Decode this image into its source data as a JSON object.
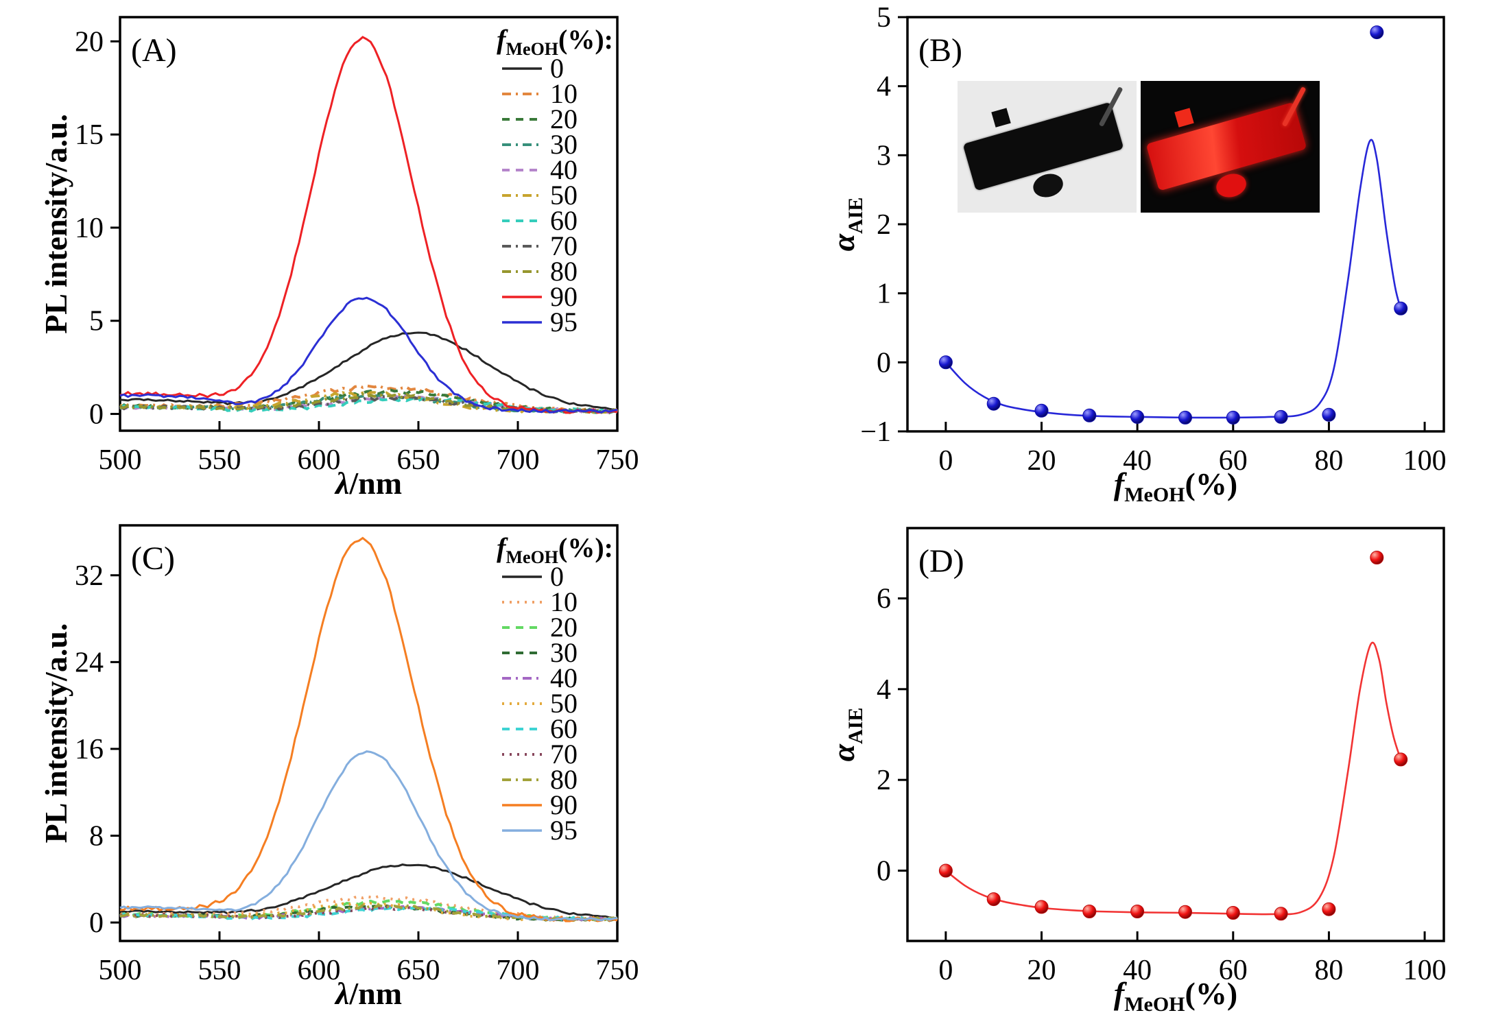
{
  "figure": {
    "background": "#ffffff",
    "description_colors": {
      "panel_a_main_red": "#ee2125",
      "panel_a_main_blue": "#2b2fd4",
      "panel_c_main_orange": "#f57e22",
      "panel_c_main_lightblue": "#84aede",
      "scatter_blue": "#1717cf",
      "scatter_red": "#f01212"
    }
  },
  "inset": {
    "bright_bg": "#eaeaea",
    "bright_crystal": "#0c0c0c",
    "dark_bg": "#070707",
    "fluor_crystal": "#e51212"
  },
  "chart_data": [
    {
      "id": "A",
      "type": "line",
      "panel_label": "(A)",
      "xlabel": {
        "italic": "λ",
        "rest": "/nm"
      },
      "ylabel": {
        "text": "PL intensity/a.u."
      },
      "xlim": [
        500,
        750
      ],
      "xticks": [
        500,
        550,
        600,
        650,
        700,
        750
      ],
      "ylim": [
        -0.9,
        21.3
      ],
      "yticks": [
        0,
        5,
        10,
        15,
        20
      ],
      "grid": false,
      "floor": 0.15,
      "legend": {
        "position": "inside-top-right",
        "title": {
          "italic": "f",
          "sub": "MeOH",
          "rest": "(%):"
        }
      },
      "series": [
        {
          "label": "0",
          "color": "#262626",
          "style": "solid",
          "peak_nm": 648,
          "peak_intensity": 4.2,
          "width_nm": 52,
          "baseline": 0.6,
          "noise": 0.06
        },
        {
          "label": "10",
          "color": "#e2873f",
          "style": "dashdot",
          "peak_nm": 630,
          "peak_intensity": 1.3,
          "width_nm": 55,
          "baseline": 0.25,
          "noise": 0.1
        },
        {
          "label": "20",
          "color": "#3a7a3a",
          "style": "dash",
          "peak_nm": 638,
          "peak_intensity": 1.05,
          "width_nm": 50,
          "baseline": 0.25,
          "noise": 0.1
        },
        {
          "label": "30",
          "color": "#37907b",
          "style": "dashdot",
          "peak_nm": 628,
          "peak_intensity": 0.85,
          "width_nm": 48,
          "baseline": 0.2,
          "noise": 0.09
        },
        {
          "label": "40",
          "color": "#b585cb",
          "style": "dash",
          "peak_nm": 642,
          "peak_intensity": 0.75,
          "width_nm": 50,
          "baseline": 0.2,
          "noise": 0.09
        },
        {
          "label": "50",
          "color": "#c7a42e",
          "style": "dashdot",
          "peak_nm": 622,
          "peak_intensity": 0.95,
          "width_nm": 45,
          "baseline": 0.25,
          "noise": 0.1
        },
        {
          "label": "60",
          "color": "#35cdbb",
          "style": "dash",
          "peak_nm": 648,
          "peak_intensity": 0.65,
          "width_nm": 50,
          "baseline": 0.2,
          "noise": 0.09
        },
        {
          "label": "70",
          "color": "#5a5a5a",
          "style": "dashdot",
          "peak_nm": 636,
          "peak_intensity": 0.7,
          "width_nm": 48,
          "baseline": 0.2,
          "noise": 0.09
        },
        {
          "label": "80",
          "color": "#96962e",
          "style": "dashdot",
          "peak_nm": 632,
          "peak_intensity": 0.85,
          "width_nm": 46,
          "baseline": 0.25,
          "noise": 0.1
        },
        {
          "label": "90",
          "color": "#ee2125",
          "style": "solid",
          "peak_nm": 622,
          "peak_intensity": 20.0,
          "width_nm": 36,
          "baseline": 0.95,
          "noise": 0.1
        },
        {
          "label": "95",
          "color": "#2b2fd4",
          "style": "solid",
          "peak_nm": 623,
          "peak_intensity": 6.1,
          "width_nm": 33,
          "baseline": 0.85,
          "noise": 0.08
        }
      ]
    },
    {
      "id": "B",
      "type": "scatter",
      "panel_label": "(B)",
      "xlabel": {
        "italic": "f",
        "sub": "MeOH",
        "rest": "(%)"
      },
      "ylabel": {
        "italic": "α",
        "sub": "AIE"
      },
      "xlim": [
        -8,
        104
      ],
      "xticks": [
        0,
        20,
        40,
        60,
        80,
        100
      ],
      "ylim": [
        -1,
        5
      ],
      "yticks": [
        -1,
        0,
        1,
        2,
        3,
        4,
        5
      ],
      "grid": false,
      "marker_color": "#1717cf",
      "marker_light": "#9d9dff",
      "marker_dark": "#05055e",
      "marker_edge": "#0d0da8",
      "curve_color": "#2727d8",
      "points": {
        "x": [
          0,
          10,
          20,
          30,
          40,
          50,
          60,
          70,
          80,
          90,
          95
        ],
        "y": [
          0,
          -0.6,
          -0.7,
          -0.77,
          -0.79,
          -0.8,
          -0.8,
          -0.79,
          -0.76,
          4.78,
          0.78
        ]
      },
      "fit_curve": [
        [
          0,
          0
        ],
        [
          4,
          -0.3
        ],
        [
          8,
          -0.5
        ],
        [
          12,
          -0.62
        ],
        [
          16,
          -0.68
        ],
        [
          20,
          -0.72
        ],
        [
          26,
          -0.76
        ],
        [
          32,
          -0.78
        ],
        [
          40,
          -0.79
        ],
        [
          50,
          -0.8
        ],
        [
          60,
          -0.8
        ],
        [
          68,
          -0.79
        ],
        [
          74,
          -0.76
        ],
        [
          78,
          -0.6
        ],
        [
          81,
          -0.1
        ],
        [
          84,
          1.2
        ],
        [
          86.5,
          2.5
        ],
        [
          88.5,
          3.2
        ],
        [
          90,
          2.95
        ],
        [
          92,
          1.9
        ],
        [
          93.8,
          1.1
        ],
        [
          95,
          0.78
        ]
      ]
    },
    {
      "id": "C",
      "type": "line",
      "panel_label": "(C)",
      "xlabel": {
        "italic": "λ",
        "rest": "/nm"
      },
      "ylabel": {
        "text": "PL intensity/a.u."
      },
      "xlim": [
        500,
        750
      ],
      "xticks": [
        500,
        550,
        600,
        650,
        700,
        750
      ],
      "ylim": [
        -1.7,
        36.6
      ],
      "yticks": [
        0,
        8,
        16,
        24,
        32
      ],
      "grid": false,
      "floor": 0.3,
      "legend": {
        "position": "inside-top-right",
        "title": {
          "italic": "f",
          "sub": "MeOH",
          "rest": "(%):"
        }
      },
      "series": [
        {
          "label": "0",
          "color": "#262626",
          "style": "solid",
          "peak_nm": 645,
          "peak_intensity": 5.0,
          "width_nm": 55,
          "baseline": 0.7,
          "noise": 0.1
        },
        {
          "label": "10",
          "color": "#f0a066",
          "style": "dot",
          "peak_nm": 630,
          "peak_intensity": 2.0,
          "width_nm": 55,
          "baseline": 0.4,
          "noise": 0.15
        },
        {
          "label": "20",
          "color": "#63d963",
          "style": "dash",
          "peak_nm": 635,
          "peak_intensity": 1.6,
          "width_nm": 50,
          "baseline": 0.4,
          "noise": 0.14
        },
        {
          "label": "30",
          "color": "#2f6b33",
          "style": "dash",
          "peak_nm": 628,
          "peak_intensity": 1.2,
          "width_nm": 48,
          "baseline": 0.35,
          "noise": 0.13
        },
        {
          "label": "40",
          "color": "#a468c4",
          "style": "dashdot",
          "peak_nm": 640,
          "peak_intensity": 1.1,
          "width_nm": 50,
          "baseline": 0.35,
          "noise": 0.13
        },
        {
          "label": "50",
          "color": "#e3aa3c",
          "style": "dot",
          "peak_nm": 624,
          "peak_intensity": 1.4,
          "width_nm": 45,
          "baseline": 0.4,
          "noise": 0.14
        },
        {
          "label": "60",
          "color": "#3ed3d3",
          "style": "dash",
          "peak_nm": 646,
          "peak_intensity": 1.0,
          "width_nm": 50,
          "baseline": 0.35,
          "noise": 0.13
        },
        {
          "label": "70",
          "color": "#87465c",
          "style": "dot",
          "peak_nm": 636,
          "peak_intensity": 1.0,
          "width_nm": 48,
          "baseline": 0.35,
          "noise": 0.13
        },
        {
          "label": "80",
          "color": "#a2a23a",
          "style": "dashdot",
          "peak_nm": 632,
          "peak_intensity": 1.2,
          "width_nm": 46,
          "baseline": 0.4,
          "noise": 0.14
        },
        {
          "label": "90",
          "color": "#f57e22",
          "style": "solid",
          "peak_nm": 621,
          "peak_intensity": 35.0,
          "width_nm": 38,
          "baseline": 1.0,
          "noise": 0.2
        },
        {
          "label": "95",
          "color": "#84aede",
          "style": "solid",
          "peak_nm": 625,
          "peak_intensity": 15.5,
          "width_nm": 36,
          "baseline": 1.1,
          "noise": 0.12
        }
      ]
    },
    {
      "id": "D",
      "type": "scatter",
      "panel_label": "(D)",
      "xlabel": {
        "italic": "f",
        "sub": "MeOH",
        "rest": "(%)"
      },
      "ylabel": {
        "italic": "α",
        "sub": "AIE"
      },
      "xlim": [
        -8,
        104
      ],
      "xticks": [
        0,
        20,
        40,
        60,
        80,
        100
      ],
      "ylim": [
        -1.55,
        7.55
      ],
      "yticks": [
        0,
        2,
        4,
        6
      ],
      "grid": false,
      "marker_color": "#f01212",
      "marker_light": "#ffb3a6",
      "marker_dark": "#7e0404",
      "marker_edge": "#b80b0b",
      "curve_color": "#f23333",
      "points": {
        "x": [
          0,
          10,
          20,
          30,
          40,
          50,
          60,
          70,
          80,
          90,
          95
        ],
        "y": [
          0,
          -0.63,
          -0.8,
          -0.9,
          -0.9,
          -0.91,
          -0.93,
          -0.95,
          -0.85,
          6.9,
          2.45
        ]
      },
      "fit_curve": [
        [
          0,
          0
        ],
        [
          4,
          -0.33
        ],
        [
          8,
          -0.55
        ],
        [
          12,
          -0.68
        ],
        [
          16,
          -0.76
        ],
        [
          20,
          -0.82
        ],
        [
          26,
          -0.87
        ],
        [
          32,
          -0.9
        ],
        [
          40,
          -0.92
        ],
        [
          50,
          -0.93
        ],
        [
          60,
          -0.95
        ],
        [
          68,
          -0.96
        ],
        [
          74,
          -0.92
        ],
        [
          78,
          -0.6
        ],
        [
          81,
          0.3
        ],
        [
          84,
          2.2
        ],
        [
          86.5,
          4.0
        ],
        [
          88.8,
          5.0
        ],
        [
          90.5,
          4.65
        ],
        [
          92,
          3.7
        ],
        [
          93.5,
          2.95
        ],
        [
          95,
          2.45
        ]
      ]
    }
  ]
}
